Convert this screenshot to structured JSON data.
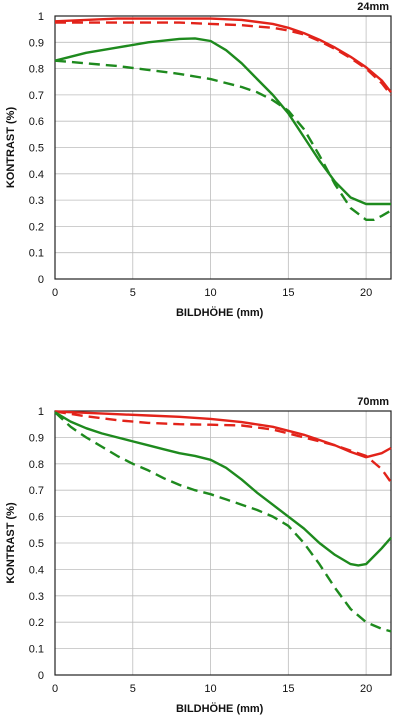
{
  "chart_data": [
    {
      "type": "line",
      "title": "24mm",
      "xlabel": "BILDHÖHE (mm)",
      "ylabel": "KONTRAST (%)",
      "xlim": [
        0,
        21.6
      ],
      "ylim": [
        0,
        1
      ],
      "xticks": [
        "0",
        "5",
        "10",
        "15",
        "20"
      ],
      "yticks": [
        "0",
        "0.1",
        "0.2",
        "0.3",
        "0.4",
        "0.5",
        "0.6",
        "0.7",
        "0.8",
        "0.9",
        "1"
      ],
      "grid": true,
      "series": [
        {
          "color": "#e2231a",
          "dash": false,
          "x": [
            0,
            2,
            4,
            6,
            8,
            10,
            12,
            14,
            15,
            16,
            17,
            18,
            19,
            20,
            21,
            21.6
          ],
          "y": [
            0.98,
            0.985,
            0.99,
            0.99,
            0.99,
            0.99,
            0.985,
            0.97,
            0.955,
            0.935,
            0.91,
            0.88,
            0.845,
            0.805,
            0.755,
            0.71
          ]
        },
        {
          "color": "#e2231a",
          "dash": true,
          "x": [
            0,
            2,
            4,
            6,
            8,
            10,
            12,
            14,
            15,
            16,
            17,
            18,
            19,
            20,
            21,
            21.6
          ],
          "y": [
            0.975,
            0.975,
            0.975,
            0.975,
            0.975,
            0.97,
            0.965,
            0.955,
            0.945,
            0.93,
            0.905,
            0.875,
            0.84,
            0.8,
            0.745,
            0.7
          ]
        },
        {
          "color": "#1e8a1e",
          "dash": false,
          "x": [
            0,
            2,
            4,
            6,
            8,
            9,
            10,
            11,
            12,
            13,
            14,
            15,
            16,
            17,
            18,
            19,
            20,
            21,
            21.6
          ],
          "y": [
            0.83,
            0.86,
            0.88,
            0.9,
            0.913,
            0.915,
            0.905,
            0.87,
            0.82,
            0.76,
            0.7,
            0.63,
            0.54,
            0.45,
            0.37,
            0.31,
            0.285,
            0.285,
            0.285
          ]
        },
        {
          "color": "#1e8a1e",
          "dash": true,
          "x": [
            0,
            2,
            4,
            6,
            8,
            10,
            12,
            13,
            14,
            15,
            16,
            17,
            18,
            19,
            20,
            20.5,
            21,
            21.6
          ],
          "y": [
            0.83,
            0.82,
            0.81,
            0.795,
            0.78,
            0.76,
            0.73,
            0.71,
            0.68,
            0.64,
            0.57,
            0.47,
            0.36,
            0.27,
            0.225,
            0.225,
            0.24,
            0.26
          ]
        }
      ]
    },
    {
      "type": "line",
      "title": "70mm",
      "xlabel": "BILDHÖHE (mm)",
      "ylabel": "KONTRAST (%)",
      "xlim": [
        0,
        21.6
      ],
      "ylim": [
        0,
        1
      ],
      "xticks": [
        "0",
        "5",
        "10",
        "15",
        "20"
      ],
      "yticks": [
        "0",
        "0.1",
        "0.2",
        "0.3",
        "0.4",
        "0.5",
        "0.6",
        "0.7",
        "0.8",
        "0.9",
        "1"
      ],
      "grid": true,
      "series": [
        {
          "color": "#e2231a",
          "dash": false,
          "x": [
            0,
            2,
            4,
            6,
            8,
            10,
            12,
            14,
            16,
            18,
            19,
            20,
            21,
            21.6
          ],
          "y": [
            0.998,
            0.993,
            0.988,
            0.983,
            0.978,
            0.97,
            0.958,
            0.94,
            0.91,
            0.87,
            0.845,
            0.825,
            0.84,
            0.86
          ]
        },
        {
          "color": "#e2231a",
          "dash": true,
          "x": [
            0,
            2,
            4,
            6,
            8,
            10,
            12,
            14,
            16,
            18,
            19,
            20,
            21,
            21.6
          ],
          "y": [
            0.998,
            0.98,
            0.965,
            0.955,
            0.95,
            0.948,
            0.945,
            0.93,
            0.9,
            0.87,
            0.85,
            0.83,
            0.78,
            0.73
          ]
        },
        {
          "color": "#1e8a1e",
          "dash": false,
          "x": [
            0,
            1,
            2,
            3,
            4,
            5,
            6,
            7,
            8,
            9,
            10,
            11,
            12,
            13,
            14,
            15,
            16,
            17,
            18,
            19,
            19.5,
            20,
            21,
            21.6
          ],
          "y": [
            0.995,
            0.96,
            0.935,
            0.915,
            0.9,
            0.885,
            0.87,
            0.855,
            0.84,
            0.83,
            0.815,
            0.785,
            0.74,
            0.69,
            0.645,
            0.6,
            0.555,
            0.5,
            0.455,
            0.42,
            0.415,
            0.42,
            0.48,
            0.52
          ]
        },
        {
          "color": "#1e8a1e",
          "dash": true,
          "x": [
            0,
            1,
            2,
            3,
            4,
            5,
            6,
            7,
            8,
            9,
            10,
            11,
            12,
            13,
            14,
            15,
            16,
            17,
            18,
            19,
            20,
            21,
            21.6
          ],
          "y": [
            0.995,
            0.94,
            0.9,
            0.865,
            0.83,
            0.8,
            0.775,
            0.745,
            0.72,
            0.7,
            0.685,
            0.665,
            0.645,
            0.625,
            0.6,
            0.565,
            0.5,
            0.42,
            0.33,
            0.25,
            0.2,
            0.175,
            0.165
          ]
        }
      ]
    }
  ]
}
